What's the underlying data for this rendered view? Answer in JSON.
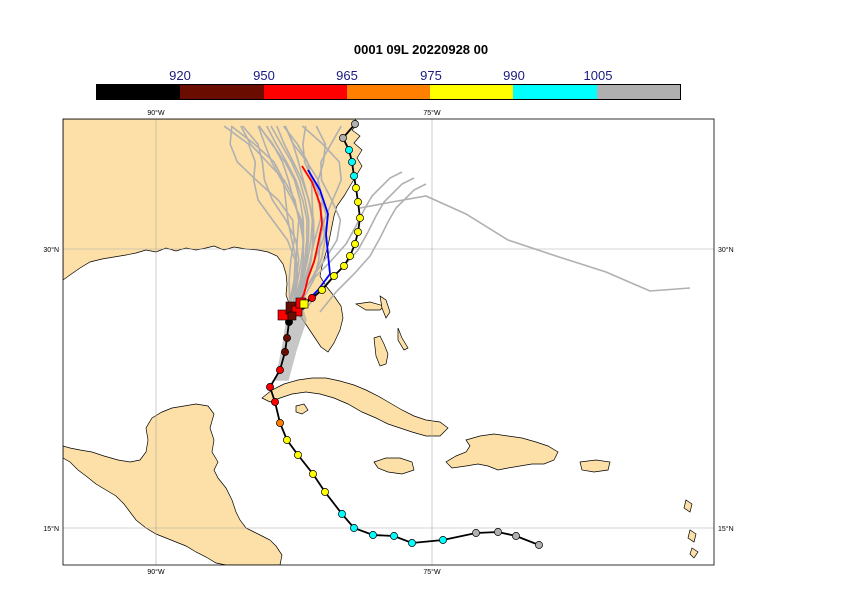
{
  "title": "0001 09L 20220928 00",
  "colorbar": {
    "labels": [
      "920",
      "950",
      "965",
      "975",
      "990",
      "1005"
    ],
    "colors": [
      "#000000",
      "#6b0c00",
      "#ff0000",
      "#ff8000",
      "#ffff00",
      "#00ffff",
      "#b0b0b0"
    ]
  },
  "map": {
    "lon_ticks": [
      "90°W",
      "75°W"
    ],
    "lat_ticks": [
      "30°N",
      "15°N"
    ],
    "land_color": "#fde0a8",
    "ocean_color": "#ffffff",
    "ensemble_color": "#b0b0b0",
    "track_color": "#000000",
    "forecast_colors": [
      "#ff0000",
      "#0000ff"
    ]
  }
}
